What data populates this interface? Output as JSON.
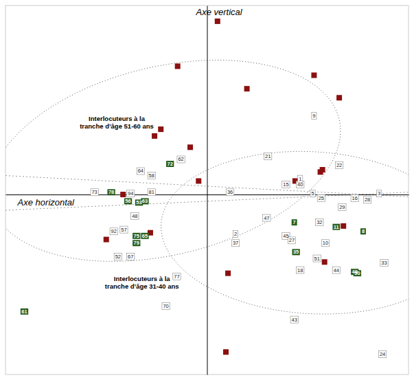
{
  "chart_data": {
    "type": "scatter",
    "xlabel": "Axe horizontal",
    "ylabel": "Axe vertical",
    "xlim": [
      -4.8,
      4.8
    ],
    "ylim": [
      -4.0,
      4.2
    ],
    "xticks": [],
    "yticks": [],
    "tick_labels": false,
    "grid": false,
    "series": [
      {
        "color": "#8B1010",
        "marker": "square",
        "x": [
          0.25,
          -0.7,
          0.95,
          2.55,
          3.15,
          2.7,
          2.1,
          2.75,
          -0.2,
          -1.1,
          -1.25,
          -0.4,
          -2.0,
          -1.35,
          3.25,
          2.8,
          -2.4,
          0.5,
          0.45
        ],
        "values": [
          3.85,
          2.85,
          2.35,
          2.65,
          2.15,
          0.5,
          0.3,
          0.55,
          0.3,
          1.45,
          1.3,
          1.05,
          -0.0,
          -0.85,
          -0.7,
          -1.5,
          -1.0,
          -1.75,
          -3.5
        ]
      },
      {
        "marker": "box",
        "labels": [
          "9",
          "21",
          "22",
          "36",
          "3",
          "28",
          "16",
          "29",
          "47",
          "32",
          "45",
          "27",
          "10",
          "51",
          "18",
          "44",
          "33",
          "43",
          "24",
          "2",
          "37",
          "64",
          "62",
          "58",
          "73",
          "94",
          "81",
          "48",
          "92",
          "57",
          "52",
          "67",
          "77",
          "70",
          "15",
          "40",
          "5",
          "25",
          "1"
        ],
        "x": [
          2.55,
          1.45,
          3.15,
          0.55,
          4.1,
          3.82,
          3.52,
          3.22,
          1.42,
          2.68,
          1.88,
          2.02,
          2.82,
          2.62,
          2.22,
          3.08,
          4.22,
          2.08,
          4.18,
          0.68,
          0.68,
          -1.58,
          -0.62,
          -1.32,
          -2.68,
          -1.82,
          -1.32,
          -1.72,
          -2.22,
          -1.98,
          -2.12,
          -1.82,
          -0.72,
          -0.98,
          1.88,
          2.22,
          2.52,
          2.72,
          2.22
        ],
        "values": [
          1.75,
          0.85,
          0.65,
          0.05,
          0.02,
          -0.12,
          -0.08,
          -0.28,
          -0.52,
          -0.62,
          -0.92,
          -1.02,
          -1.08,
          -1.42,
          -1.68,
          -1.68,
          -1.52,
          -2.78,
          -3.55,
          -0.88,
          -1.08,
          0.52,
          0.78,
          0.42,
          0.05,
          0.02,
          0.05,
          -0.48,
          -0.82,
          -0.78,
          -1.38,
          -1.38,
          -1.82,
          -2.48,
          0.22,
          0.22,
          0.02,
          -0.08,
          0.35
        ]
      },
      {
        "color": "#2A6020",
        "marker": "square",
        "labels": [
          "72",
          "78",
          "56",
          "53",
          "63",
          "75",
          "65",
          "79",
          "7",
          "11",
          "8",
          "35",
          "50",
          "49",
          "61"
        ],
        "x": [
          -0.88,
          -2.28,
          -1.88,
          -1.62,
          -1.48,
          -1.68,
          -1.48,
          -1.68,
          2.08,
          3.08,
          3.72,
          2.12,
          3.58,
          3.52,
          -4.35
        ],
        "values": [
          0.68,
          0.05,
          -0.15,
          -0.18,
          -0.15,
          -0.92,
          -0.92,
          -1.08,
          -0.62,
          -0.72,
          -0.82,
          -1.28,
          -1.75,
          -1.72,
          -2.6
        ]
      }
    ],
    "ellipses": [
      {
        "cx": -1.0,
        "cy": 0.75,
        "width": 8.5,
        "height": 4.2,
        "angle": 12
      },
      {
        "cx": 2.5,
        "cy": -0.85,
        "width": 7.2,
        "height": 3.6,
        "angle": -3
      }
    ],
    "reference_lines": [
      {
        "x": [
          -4.8,
          4.8
        ],
        "values": [
          0.42,
          -0.05
        ]
      },
      {
        "x": [
          -4.8,
          4.8
        ],
        "values": [
          -0.35,
          0.05
        ]
      }
    ],
    "annotations": [
      {
        "text": "Interlocuteurs à la\ntranche d’âge 51-60 ans",
        "x": -2.15,
        "y": 1.6
      },
      {
        "text": "Interlocuteurs à la\ntranche d’âge 31-40 ans",
        "x": -1.55,
        "y": -1.95
      }
    ]
  }
}
